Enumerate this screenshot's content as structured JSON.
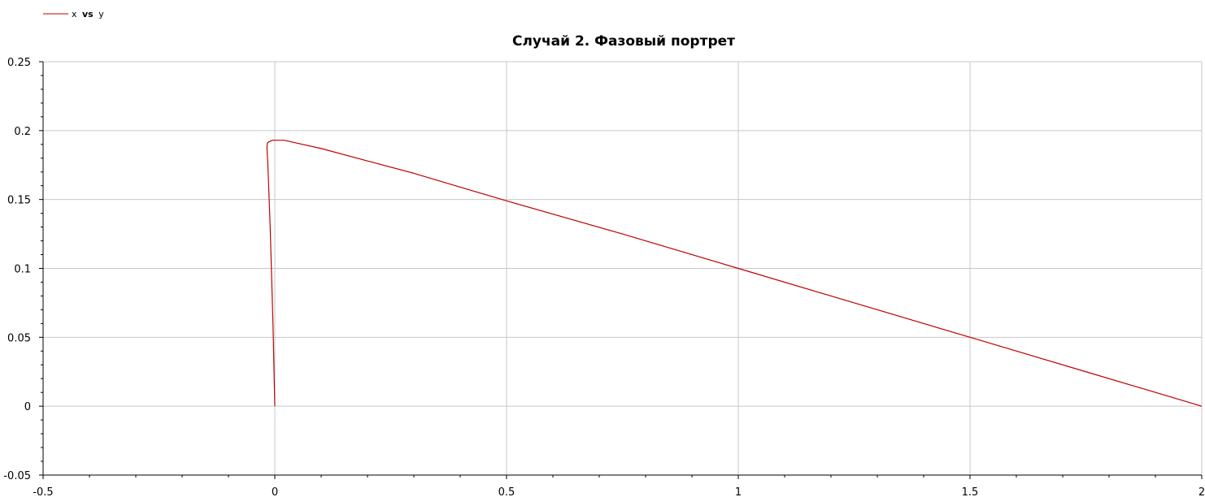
{
  "chart_data": {
    "type": "line",
    "title": "Случай 2. Фазовый портрет",
    "legend": {
      "position": "top-left",
      "entries": [
        {
          "x_name": "x",
          "vs": "vs",
          "y_name": "y",
          "color": "#c00000"
        }
      ]
    },
    "xlabel": "",
    "ylabel": "",
    "xlim": [
      -0.5,
      2
    ],
    "ylim": [
      -0.05,
      0.25
    ],
    "grid": true,
    "x_ticks": [
      {
        "value": -0.5,
        "label": "-0.5"
      },
      {
        "value": 0,
        "label": "0"
      },
      {
        "value": 0.5,
        "label": "0.5"
      },
      {
        "value": 1,
        "label": "1"
      },
      {
        "value": 1.5,
        "label": "1.5"
      },
      {
        "value": 2,
        "label": "2"
      }
    ],
    "y_ticks": [
      {
        "value": -0.05,
        "label": "-0.05"
      },
      {
        "value": 0,
        "label": "0"
      },
      {
        "value": 0.05,
        "label": "0.05"
      },
      {
        "value": 0.1,
        "label": "0.1"
      },
      {
        "value": 0.15,
        "label": "0.15"
      },
      {
        "value": 0.2,
        "label": "0.2"
      },
      {
        "value": 0.25,
        "label": "0.25"
      }
    ],
    "series": [
      {
        "color": "#c00000",
        "points": [
          [
            0,
            0
          ],
          [
            -0.004,
            0.06
          ],
          [
            -0.01,
            0.13
          ],
          [
            -0.015,
            0.175
          ],
          [
            -0.017,
            0.188
          ],
          [
            -0.016,
            0.191
          ],
          [
            -0.012,
            0.192
          ],
          [
            -0.005,
            0.193
          ],
          [
            0.02,
            0.193
          ],
          [
            0.1,
            0.187
          ],
          [
            0.2,
            0.178
          ],
          [
            0.3,
            0.169
          ],
          [
            0.4,
            0.159
          ],
          [
            0.5,
            0.149
          ],
          [
            0.75,
            0.125
          ],
          [
            1,
            0.1
          ],
          [
            1.25,
            0.075
          ],
          [
            1.5,
            0.05
          ],
          [
            1.75,
            0.025
          ],
          [
            2,
            0
          ]
        ]
      }
    ]
  }
}
